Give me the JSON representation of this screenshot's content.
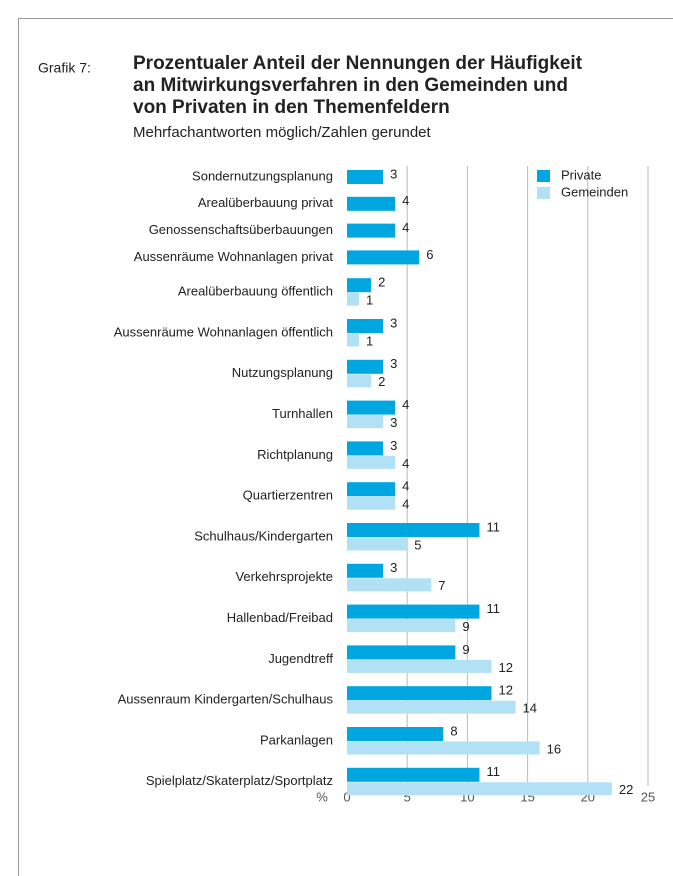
{
  "chart_data": {
    "type": "barh",
    "label": "Grafik 7:",
    "title": [
      "Prozentualer Anteil der Nennungen der Häufigkeit",
      "an Mitwirkungsverfahren in den Gemeinden und",
      "von Privaten in den Themenfeldern"
    ],
    "subtitle": "Mehrfachantworten möglich/Zahlen gerundet",
    "xlabel": "%",
    "categories": [
      "Sondernutzungsplanung",
      "Arealüberbauung privat",
      "Genossenschaftsüberbauungen",
      "Aussenräume Wohnanlagen privat",
      "Arealüberbauung öffentlich",
      "Aussenräume Wohnanlagen öffentlich",
      "Nutzungsplanung",
      "Turnhallen",
      "Richtplanung",
      "Quartierzentren",
      "Schulhaus/Kindergarten",
      "Verkehrsprojekte",
      "Hallenbad/Freibad",
      "Jugendtreff",
      "Aussenraum Kindergarten/Schulhaus",
      "Parkanlagen",
      "Spielplatz/Skaterplatz/Sportplatz"
    ],
    "series": [
      {
        "name": "Private",
        "color": "#00a6df",
        "values": [
          3,
          4,
          4,
          6,
          2,
          3,
          3,
          4,
          3,
          4,
          11,
          3,
          11,
          9,
          12,
          8,
          11
        ]
      },
      {
        "name": "Gemeinden",
        "color": "#b2e1f6",
        "values": [
          null,
          null,
          null,
          null,
          1,
          1,
          2,
          3,
          4,
          4,
          5,
          7,
          9,
          12,
          14,
          16,
          22
        ]
      }
    ],
    "xlim": [
      0,
      25
    ],
    "xticks": [
      0,
      5,
      10,
      15,
      20,
      25
    ],
    "grid": true,
    "legend": "upper right"
  }
}
